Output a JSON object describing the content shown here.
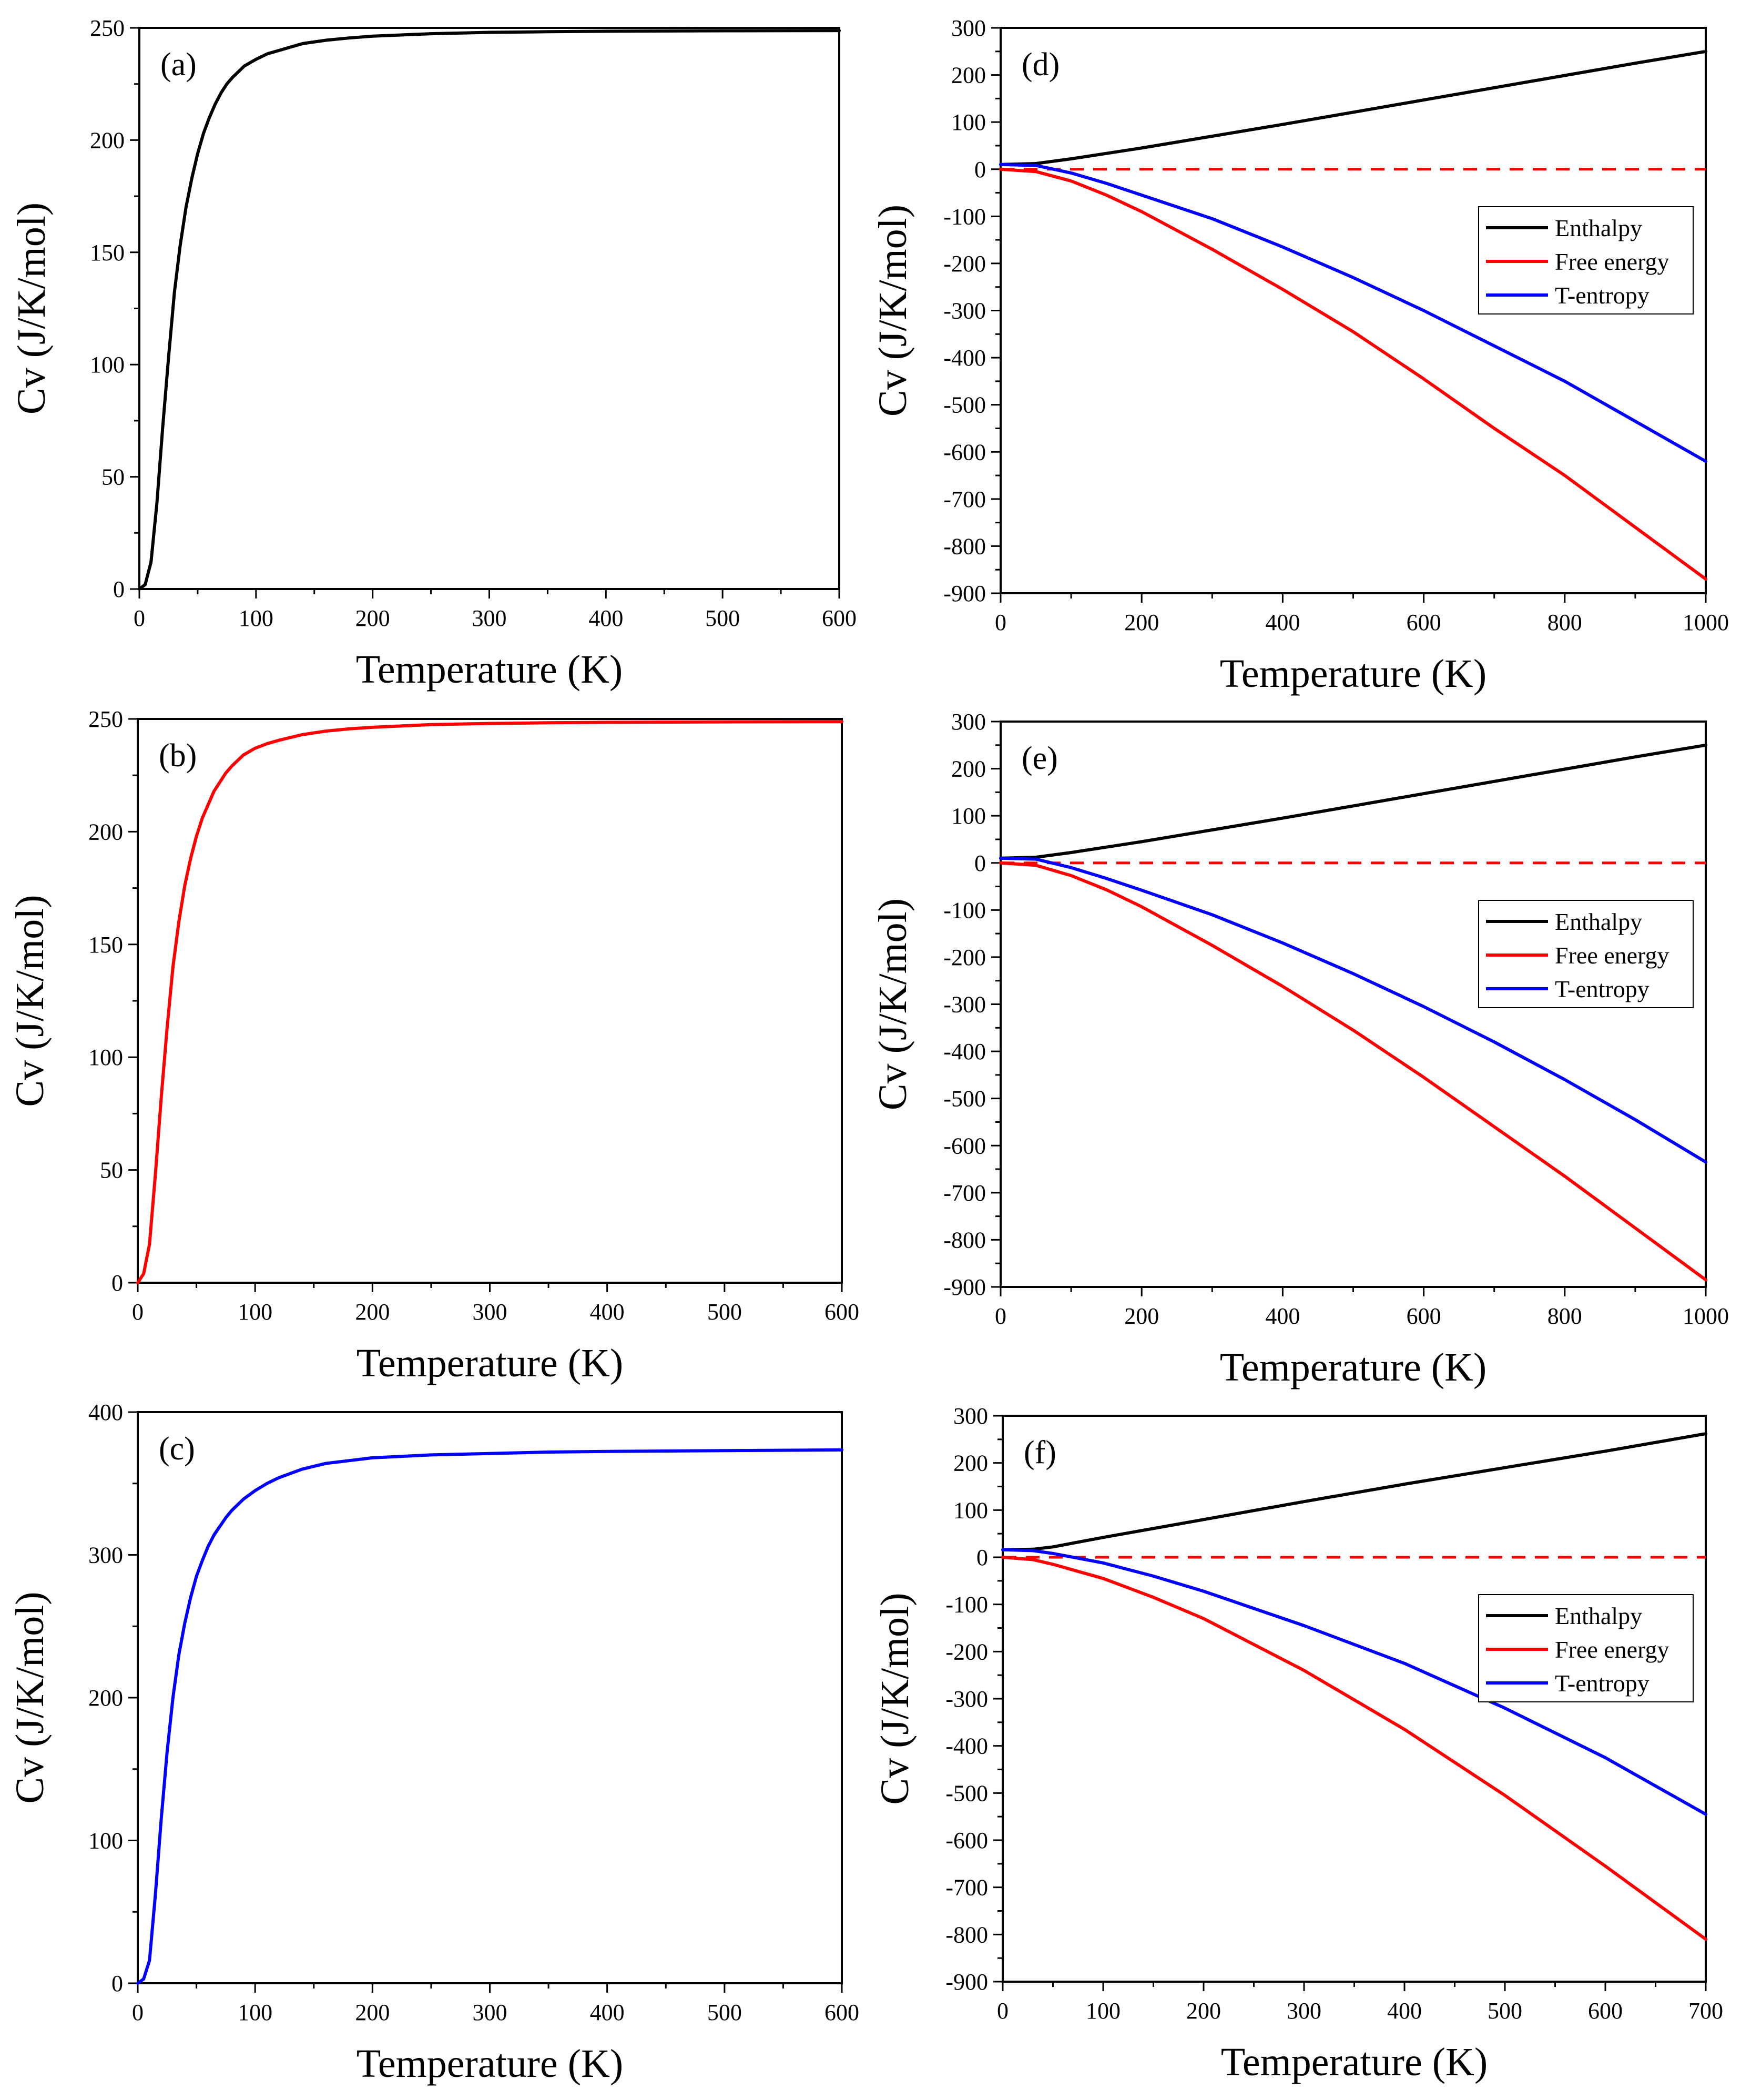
{
  "figure": {
    "colors": {
      "black": "#000000",
      "red": "#ff0000",
      "blue": "#0000ff"
    }
  },
  "chart_data": [
    {
      "id": "a",
      "panel_label": "(a)",
      "type": "line",
      "xlabel": "Temperature  (K)",
      "ylabel": "Cv  (J/K/mol)",
      "xlim": [
        0,
        600
      ],
      "ylim": [
        0,
        250
      ],
      "xticks": [
        0,
        100,
        200,
        300,
        400,
        500,
        600
      ],
      "yticks": [
        0,
        50,
        100,
        150,
        200,
        250
      ],
      "zero_line": false,
      "legend": null,
      "series": [
        {
          "name": "Cv",
          "color": "#000000",
          "x": [
            0,
            5,
            10,
            15,
            20,
            25,
            30,
            35,
            40,
            45,
            50,
            55,
            60,
            65,
            70,
            75,
            80,
            90,
            100,
            110,
            120,
            140,
            160,
            180,
            200,
            250,
            300,
            350,
            400,
            500,
            600
          ],
          "y": [
            0,
            2,
            12,
            38,
            72,
            103,
            132,
            153,
            170,
            183,
            194,
            203,
            210,
            216,
            221,
            225,
            228,
            233,
            236,
            238.5,
            240,
            243,
            244.5,
            245.5,
            246.3,
            247.4,
            248,
            248.3,
            248.5,
            248.7,
            248.8
          ]
        }
      ]
    },
    {
      "id": "b",
      "panel_label": "(b)",
      "type": "line",
      "xlabel": "Temperature  (K)",
      "ylabel": "Cv  (J/K/mol)",
      "xlim": [
        0,
        600
      ],
      "ylim": [
        0,
        250
      ],
      "xticks": [
        0,
        100,
        200,
        300,
        400,
        500,
        600
      ],
      "yticks": [
        0,
        50,
        100,
        150,
        200,
        250
      ],
      "zero_line": false,
      "legend": null,
      "series": [
        {
          "name": "Cv",
          "color": "#ff0000",
          "x": [
            0,
            5,
            10,
            15,
            20,
            25,
            30,
            35,
            40,
            45,
            50,
            55,
            60,
            65,
            70,
            75,
            80,
            90,
            100,
            110,
            120,
            140,
            160,
            180,
            200,
            250,
            300,
            350,
            400,
            500,
            600
          ],
          "y": [
            0,
            4,
            17,
            48,
            82,
            113,
            140,
            160,
            176,
            188,
            198,
            206,
            212,
            218,
            222,
            226,
            229,
            234,
            237,
            239,
            240.5,
            243,
            244.6,
            245.6,
            246.3,
            247.5,
            248,
            248.3,
            248.5,
            248.7,
            248.8
          ]
        }
      ]
    },
    {
      "id": "c",
      "panel_label": "(c)",
      "type": "line",
      "xlabel": "Temperature  (K)",
      "ylabel": "Cv  (J/K/mol)",
      "xlim": [
        0,
        600
      ],
      "ylim": [
        0,
        400
      ],
      "xticks": [
        0,
        100,
        200,
        300,
        400,
        500,
        600
      ],
      "yticks": [
        0,
        100,
        200,
        300,
        400
      ],
      "zero_line": false,
      "legend": null,
      "series": [
        {
          "name": "Cv",
          "color": "#0000ff",
          "x": [
            0,
            5,
            10,
            15,
            20,
            25,
            30,
            35,
            40,
            45,
            50,
            55,
            60,
            65,
            70,
            75,
            80,
            90,
            100,
            110,
            120,
            140,
            160,
            180,
            200,
            250,
            300,
            350,
            400,
            500,
            600
          ],
          "y": [
            0,
            3,
            16,
            62,
            115,
            162,
            200,
            230,
            252,
            270,
            285,
            296,
            306,
            314,
            320,
            326,
            331,
            339,
            345,
            350,
            354,
            360,
            364,
            366,
            368,
            370,
            371,
            372,
            372.5,
            373,
            373.5
          ]
        }
      ]
    },
    {
      "id": "d",
      "panel_label": "(d)",
      "type": "line",
      "xlabel": "Temperature  (K)",
      "ylabel": "Cv  (J/K/mol)",
      "xlim": [
        0,
        1000
      ],
      "ylim": [
        -900,
        300
      ],
      "xticks": [
        0,
        200,
        400,
        600,
        800,
        1000
      ],
      "yticks": [
        -900,
        -800,
        -700,
        -600,
        -500,
        -400,
        -300,
        -200,
        -100,
        0,
        100,
        200,
        300
      ],
      "zero_line": true,
      "legend": [
        "Enthalpy",
        "Free energy",
        "T-entropy"
      ],
      "series": [
        {
          "name": "Enthalpy",
          "color": "#000000",
          "x": [
            0,
            50,
            100,
            200,
            300,
            400,
            500,
            600,
            700,
            800,
            900,
            1000
          ],
          "y": [
            10,
            12,
            22,
            45,
            70,
            95,
            121,
            147,
            173,
            199,
            225,
            250
          ]
        },
        {
          "name": "Free energy",
          "color": "#ff0000",
          "x": [
            0,
            50,
            100,
            150,
            200,
            300,
            400,
            500,
            600,
            700,
            800,
            900,
            1000
          ],
          "y": [
            0,
            -5,
            -25,
            -55,
            -90,
            -170,
            -255,
            -345,
            -445,
            -550,
            -650,
            -760,
            -870
          ]
        },
        {
          "name": "T-entropy",
          "color": "#0000ff",
          "x": [
            0,
            50,
            100,
            150,
            200,
            300,
            400,
            500,
            600,
            700,
            800,
            900,
            1000
          ],
          "y": [
            10,
            8,
            -8,
            -30,
            -55,
            -105,
            -165,
            -230,
            -300,
            -375,
            -450,
            -535,
            -620
          ]
        }
      ]
    },
    {
      "id": "e",
      "panel_label": "(e)",
      "type": "line",
      "xlabel": "Temperature  (K)",
      "ylabel": "Cv  (J/K/mol)",
      "xlim": [
        0,
        1000
      ],
      "ylim": [
        -900,
        300
      ],
      "xticks": [
        0,
        200,
        400,
        600,
        800,
        1000
      ],
      "yticks": [
        -900,
        -800,
        -700,
        -600,
        -500,
        -400,
        -300,
        -200,
        -100,
        0,
        100,
        200,
        300
      ],
      "zero_line": true,
      "legend": [
        "Enthalpy",
        "Free energy",
        "T-entropy"
      ],
      "series": [
        {
          "name": "Enthalpy",
          "color": "#000000",
          "x": [
            0,
            50,
            100,
            200,
            300,
            400,
            500,
            600,
            700,
            800,
            900,
            1000
          ],
          "y": [
            10,
            12,
            22,
            45,
            70,
            95,
            121,
            147,
            173,
            199,
            225,
            250
          ]
        },
        {
          "name": "Free energy",
          "color": "#ff0000",
          "x": [
            0,
            50,
            100,
            150,
            200,
            300,
            400,
            500,
            600,
            700,
            800,
            900,
            1000
          ],
          "y": [
            0,
            -5,
            -27,
            -57,
            -93,
            -175,
            -262,
            -355,
            -455,
            -560,
            -665,
            -775,
            -885
          ]
        },
        {
          "name": "T-entropy",
          "color": "#0000ff",
          "x": [
            0,
            50,
            100,
            150,
            200,
            300,
            400,
            500,
            600,
            700,
            800,
            900,
            1000
          ],
          "y": [
            10,
            8,
            -10,
            -33,
            -58,
            -110,
            -170,
            -235,
            -305,
            -380,
            -460,
            -545,
            -635
          ]
        }
      ]
    },
    {
      "id": "f",
      "panel_label": "(f)",
      "type": "line",
      "xlabel": "Temperature  (K)",
      "ylabel": "Cv  (J/K/mol)",
      "xlim": [
        0,
        700
      ],
      "ylim": [
        -900,
        300
      ],
      "xticks": [
        0,
        100,
        200,
        300,
        400,
        500,
        600,
        700
      ],
      "yticks": [
        -900,
        -800,
        -700,
        -600,
        -500,
        -400,
        -300,
        -200,
        -100,
        0,
        100,
        200,
        300
      ],
      "zero_line": true,
      "legend": [
        "Enthalpy",
        "Free energy",
        "T-entropy"
      ],
      "series": [
        {
          "name": "Enthalpy",
          "color": "#000000",
          "x": [
            0,
            30,
            50,
            100,
            200,
            300,
            400,
            500,
            600,
            700
          ],
          "y": [
            16,
            17,
            22,
            42,
            80,
            118,
            155,
            190,
            225,
            262
          ]
        },
        {
          "name": "Free energy",
          "color": "#ff0000",
          "x": [
            0,
            30,
            50,
            100,
            150,
            200,
            300,
            400,
            500,
            600,
            700
          ],
          "y": [
            0,
            -5,
            -15,
            -45,
            -85,
            -130,
            -240,
            -365,
            -505,
            -655,
            -810
          ]
        },
        {
          "name": "T-entropy",
          "color": "#0000ff",
          "x": [
            0,
            30,
            50,
            100,
            150,
            200,
            300,
            400,
            500,
            600,
            700
          ],
          "y": [
            16,
            14,
            8,
            -12,
            -40,
            -72,
            -145,
            -225,
            -320,
            -425,
            -545
          ]
        }
      ]
    }
  ]
}
